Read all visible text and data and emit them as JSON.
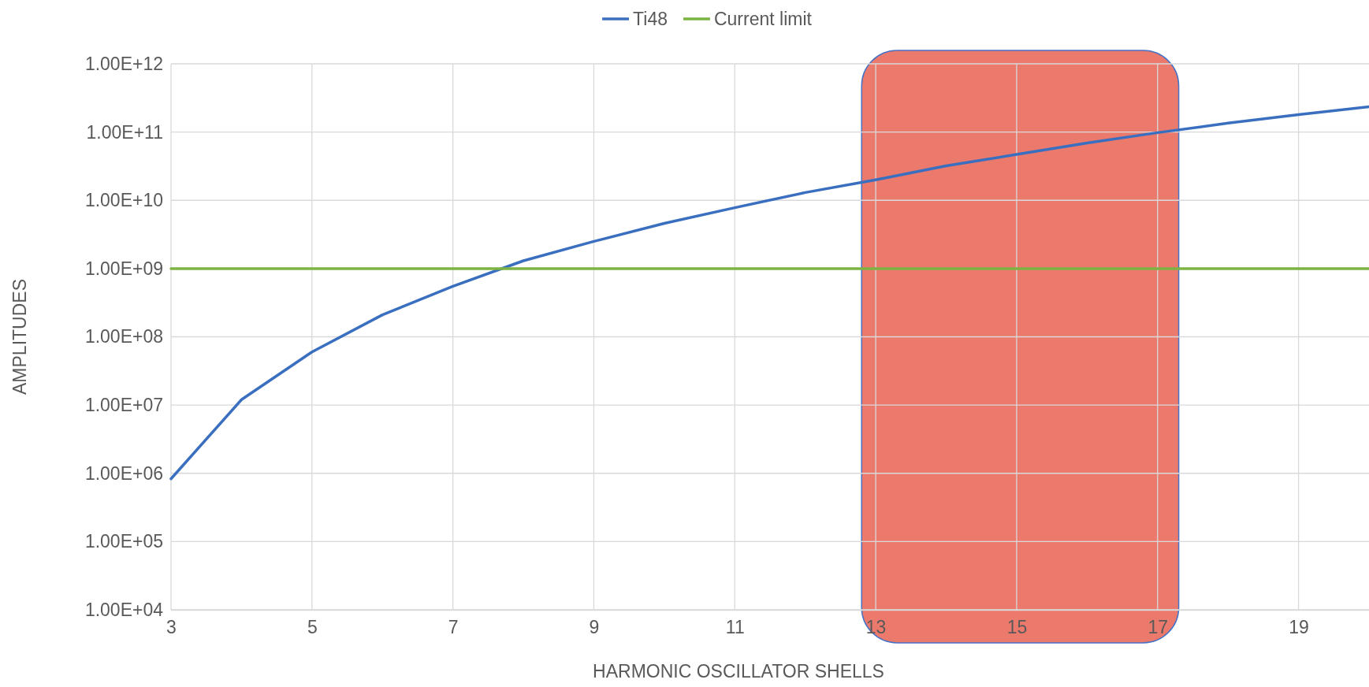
{
  "chart_data": {
    "type": "line",
    "xlabel": "HARMONIC OSCILLATOR SHELLS",
    "ylabel": "AMPLITUDES",
    "x": [
      3,
      4,
      5,
      6,
      7,
      8,
      9,
      10,
      11,
      12,
      13,
      14,
      15,
      16,
      17,
      18,
      19,
      20
    ],
    "series": [
      {
        "name": "Ti48",
        "color": "#3a6fc0",
        "values": [
          830000,
          12000000,
          60000000,
          210000000,
          550000000,
          1300000000,
          2500000000,
          4600000000,
          7800000000,
          13000000000,
          20000000000,
          32000000000,
          47000000000,
          69000000000,
          98000000000,
          135000000000,
          180000000000,
          235000000000
        ]
      },
      {
        "name": "Current limit",
        "color": "#7cb342",
        "x": [
          3,
          20
        ],
        "values": [
          1000000000,
          1000000000
        ]
      }
    ],
    "xlim": [
      3,
      20
    ],
    "xticks": [
      3,
      5,
      7,
      9,
      11,
      13,
      15,
      17,
      19
    ],
    "ylim": [
      10000,
      1000000000000
    ],
    "yticks": [
      {
        "value": 10000,
        "label": "1.00E+04"
      },
      {
        "value": 100000,
        "label": "1.00E+05"
      },
      {
        "value": 1000000,
        "label": "1.00E+06"
      },
      {
        "value": 10000000,
        "label": "1.00E+07"
      },
      {
        "value": 100000000,
        "label": "1.00E+08"
      },
      {
        "value": 1000000000,
        "label": "1.00E+09"
      },
      {
        "value": 10000000000,
        "label": "1.00E+10"
      },
      {
        "value": 100000000000,
        "label": "1.00E+11"
      },
      {
        "value": 1000000000000,
        "label": "1.00E+12"
      }
    ],
    "log": "y",
    "grid": true,
    "legend": "top",
    "marker": "none",
    "line_style": "solid",
    "bands": [
      {
        "axis": "x",
        "from": 12.8,
        "to": 17.3,
        "color": "#ec7a6c"
      }
    ]
  }
}
